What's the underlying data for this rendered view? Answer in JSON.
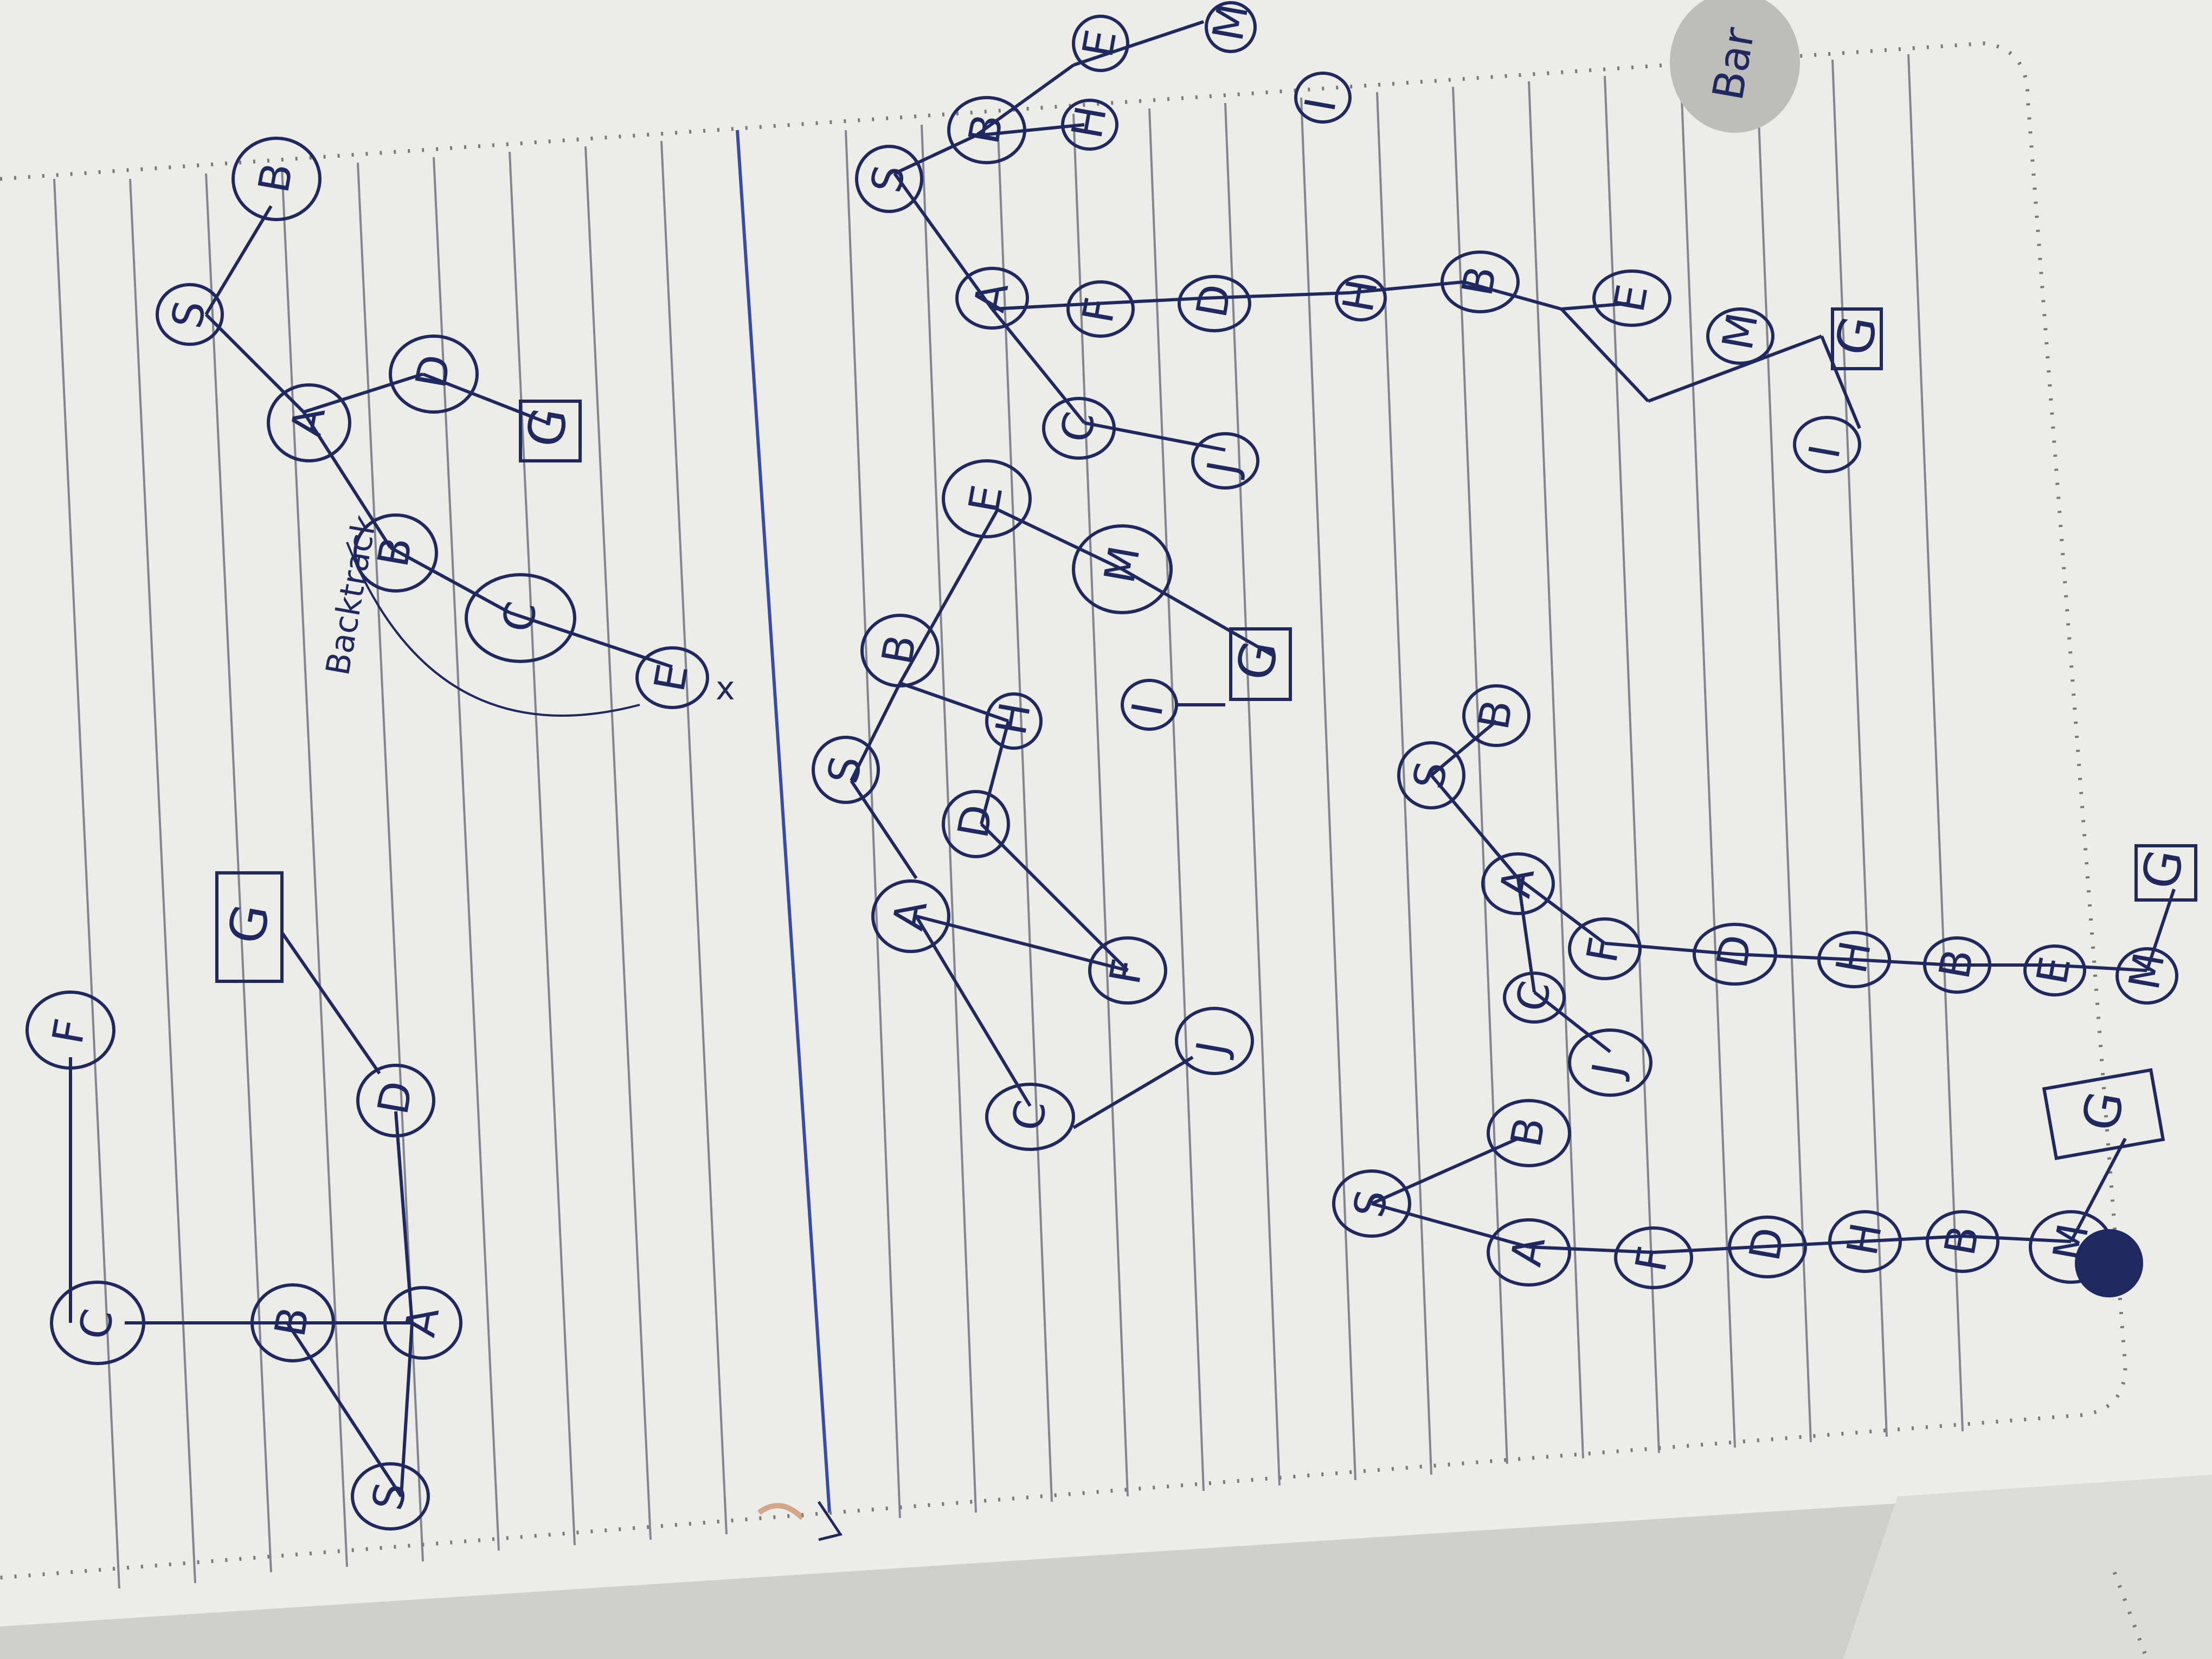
{
  "photo": {
    "corner_logo_text": "Bar",
    "annotation_backtrack": "Backtrack",
    "annotation_x": "x",
    "colors": {
      "ink": "#1f2960",
      "paper": "#ecece9",
      "rule_line": "#5f6470",
      "margin_line": "#3a4aa8",
      "dots": "#7a7a7a"
    }
  },
  "graphs": [
    {
      "name": "graph-1",
      "nodes": [
        "C",
        "F",
        "B",
        "G",
        "D",
        "S",
        "A"
      ],
      "goal": "G"
    },
    {
      "name": "graph-2",
      "nodes": [
        "S",
        "A",
        "B",
        "C",
        "D",
        "E",
        "G"
      ],
      "goal": "G"
    },
    {
      "name": "graph-3",
      "nodes": [
        "S",
        "A",
        "B",
        "C",
        "D",
        "E",
        "F",
        "H",
        "M",
        "I",
        "J",
        "G"
      ],
      "goal": "G"
    },
    {
      "name": "tree-1",
      "nodes": [
        "S",
        "B",
        "A",
        "F",
        "D",
        "H",
        "B",
        "E",
        "M",
        "I",
        "G"
      ],
      "goal": "G"
    },
    {
      "name": "tree-2",
      "nodes": [
        "S",
        "B",
        "A",
        "F",
        "C",
        "J",
        "D",
        "H",
        "B",
        "E",
        "M",
        "G"
      ],
      "goal": "G"
    },
    {
      "name": "tree-3",
      "nodes": [
        "S",
        "B",
        "A",
        "F",
        "D",
        "H",
        "B",
        "M",
        "G"
      ],
      "goal": "G"
    }
  ]
}
